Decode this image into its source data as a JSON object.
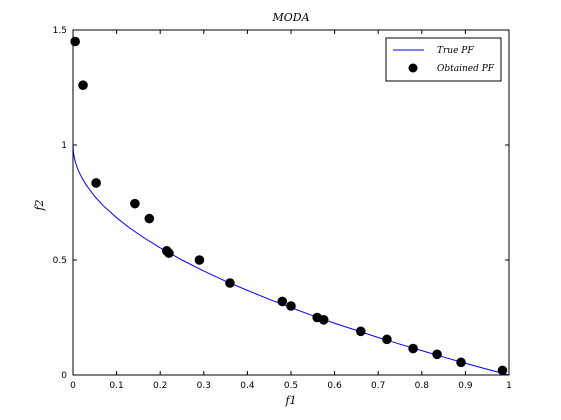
{
  "chart_data": {
    "type": "scatter",
    "title": "MODA",
    "xlabel": "f1",
    "ylabel": "f2",
    "xlim": [
      0,
      1
    ],
    "ylim": [
      0,
      1.5
    ],
    "grid": false,
    "legend_placement": "top-right",
    "x_ticks": [
      "0",
      "0.1",
      "0.2",
      "0.3",
      "0.4",
      "0.5",
      "0.6",
      "0.7",
      "0.8",
      "0.9",
      "1"
    ],
    "y_ticks": [
      "0",
      "0.5",
      "1",
      "1.5"
    ],
    "series": [
      {
        "name": "True PF",
        "type": "line",
        "color": "#0000ff",
        "x": [
          0.0,
          0.001,
          0.003,
          0.005,
          0.008,
          0.012,
          0.02,
          0.03,
          0.05,
          0.07,
          0.1,
          0.13,
          0.16,
          0.2,
          0.25,
          0.3,
          0.35,
          0.4,
          0.45,
          0.5,
          0.55,
          0.6,
          0.65,
          0.7,
          0.75,
          0.8,
          0.85,
          0.9,
          0.95,
          1.0
        ],
        "y": [
          1.0,
          0.968,
          0.945,
          0.929,
          0.911,
          0.89,
          0.859,
          0.827,
          0.776,
          0.735,
          0.684,
          0.639,
          0.6,
          0.553,
          0.5,
          0.452,
          0.408,
          0.368,
          0.329,
          0.293,
          0.258,
          0.225,
          0.194,
          0.163,
          0.134,
          0.106,
          0.078,
          0.051,
          0.025,
          0.0
        ]
      },
      {
        "name": "Obtained PF",
        "type": "scatter",
        "color": "#000000",
        "x": [
          0.005,
          0.023,
          0.053,
          0.142,
          0.175,
          0.215,
          0.22,
          0.29,
          0.36,
          0.48,
          0.5,
          0.56,
          0.575,
          0.66,
          0.72,
          0.78,
          0.835,
          0.89,
          0.985
        ],
        "y": [
          1.45,
          1.26,
          0.835,
          0.745,
          0.68,
          0.54,
          0.53,
          0.5,
          0.4,
          0.32,
          0.3,
          0.25,
          0.24,
          0.19,
          0.155,
          0.115,
          0.09,
          0.055,
          0.02
        ]
      }
    ]
  }
}
